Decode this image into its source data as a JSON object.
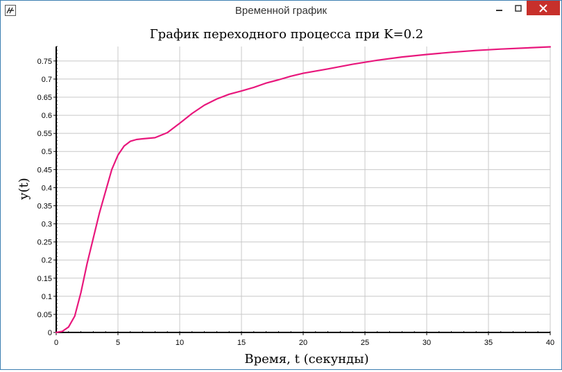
{
  "window": {
    "title": "Временной график"
  },
  "colors": {
    "curve": "#e8177c",
    "grid": "#c8c8c8",
    "close_button": "#c7302b",
    "window_border": "#3c7fb1"
  },
  "icons": {
    "app": "plot-app-icon",
    "minimize": "minimize-icon",
    "maximize": "maximize-icon",
    "close": "close-icon"
  },
  "chart_data": {
    "type": "line",
    "title": "График переходного процесса при K=0.2",
    "xlabel": "Время, t (секунды)",
    "ylabel": "y(t)",
    "xlim": [
      0,
      40
    ],
    "ylim": [
      0,
      0.79
    ],
    "grid": true,
    "legend": "none",
    "x_ticks": [
      "0",
      "5",
      "10",
      "15",
      "20",
      "25",
      "30",
      "35",
      "40"
    ],
    "y_ticks": [
      "0",
      "0.05",
      "0.1",
      "0.15",
      "0.2",
      "0.25",
      "0.3",
      "0.35",
      "0.4",
      "0.45",
      "0.5",
      "0.55",
      "0.6",
      "0.65",
      "0.7",
      "0.75"
    ],
    "series": [
      {
        "x": [
          0,
          0.5,
          1,
          1.5,
          2,
          2.5,
          3,
          3.5,
          4,
          4.5,
          5,
          5.5,
          6,
          6.5,
          7,
          8,
          9,
          10,
          11,
          12,
          13,
          14,
          15,
          16,
          17,
          18,
          19,
          20,
          22,
          24,
          26,
          28,
          30,
          32,
          34,
          36,
          38,
          40
        ],
        "y": [
          0,
          0.003,
          0.015,
          0.045,
          0.11,
          0.19,
          0.26,
          0.33,
          0.39,
          0.45,
          0.49,
          0.515,
          0.528,
          0.533,
          0.535,
          0.538,
          0.552,
          0.578,
          0.605,
          0.628,
          0.645,
          0.658,
          0.667,
          0.677,
          0.689,
          0.698,
          0.708,
          0.716,
          0.728,
          0.741,
          0.752,
          0.761,
          0.768,
          0.774,
          0.779,
          0.783,
          0.786,
          0.789
        ]
      }
    ]
  }
}
